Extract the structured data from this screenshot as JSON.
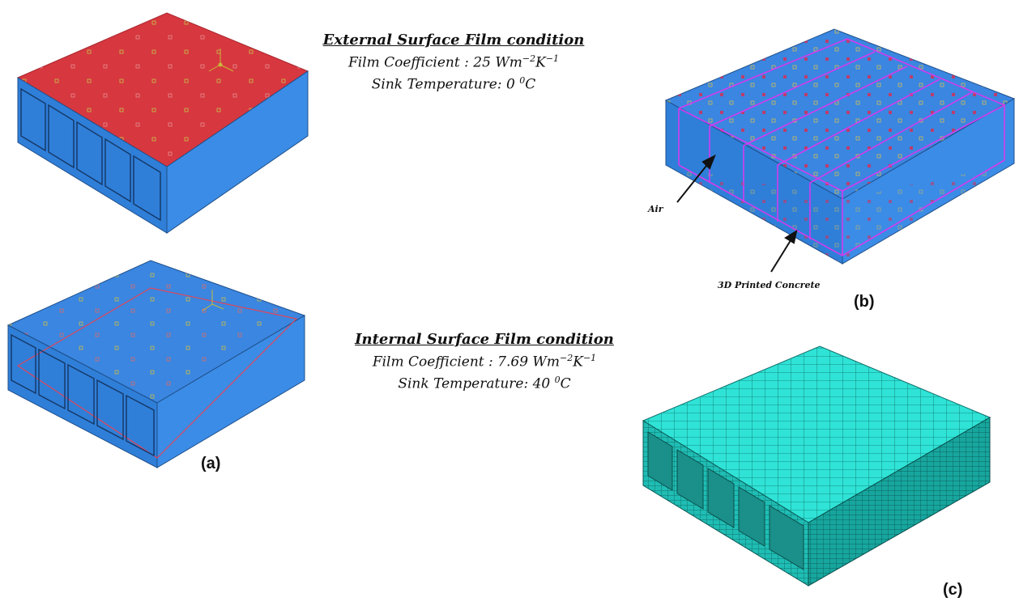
{
  "external": {
    "heading": "External Surface Film condition",
    "film_label": "Film Coefficient :",
    "film_value": "25",
    "film_unit_pre": "Wm",
    "film_exp1": "−2",
    "film_unit_mid": "K",
    "film_exp2": "−1",
    "sink_label": "Sink Temperature:",
    "sink_value": "0",
    "sink_degree": "0",
    "sink_unit": "C"
  },
  "internal": {
    "heading": "Internal Surface Film condition",
    "film_label": "Film Coefficient :",
    "film_value": "7.69",
    "film_unit_pre": "Wm",
    "film_exp1": "−2",
    "film_unit_mid": "K",
    "film_exp2": "−1",
    "sink_label": "Sink Temperature:",
    "sink_value": "40",
    "sink_degree": "0",
    "sink_unit": "C"
  },
  "labels": {
    "a": "(a)",
    "b": "(b)",
    "c": "(c)",
    "air": "Air",
    "concrete": "3D Printed Concrete"
  },
  "colors": {
    "surface_red": "#d7373f",
    "model_blue": "#3a86e0",
    "mesh_cyan": "#2ee0d4",
    "partition_magenta": "#d23cf0"
  }
}
